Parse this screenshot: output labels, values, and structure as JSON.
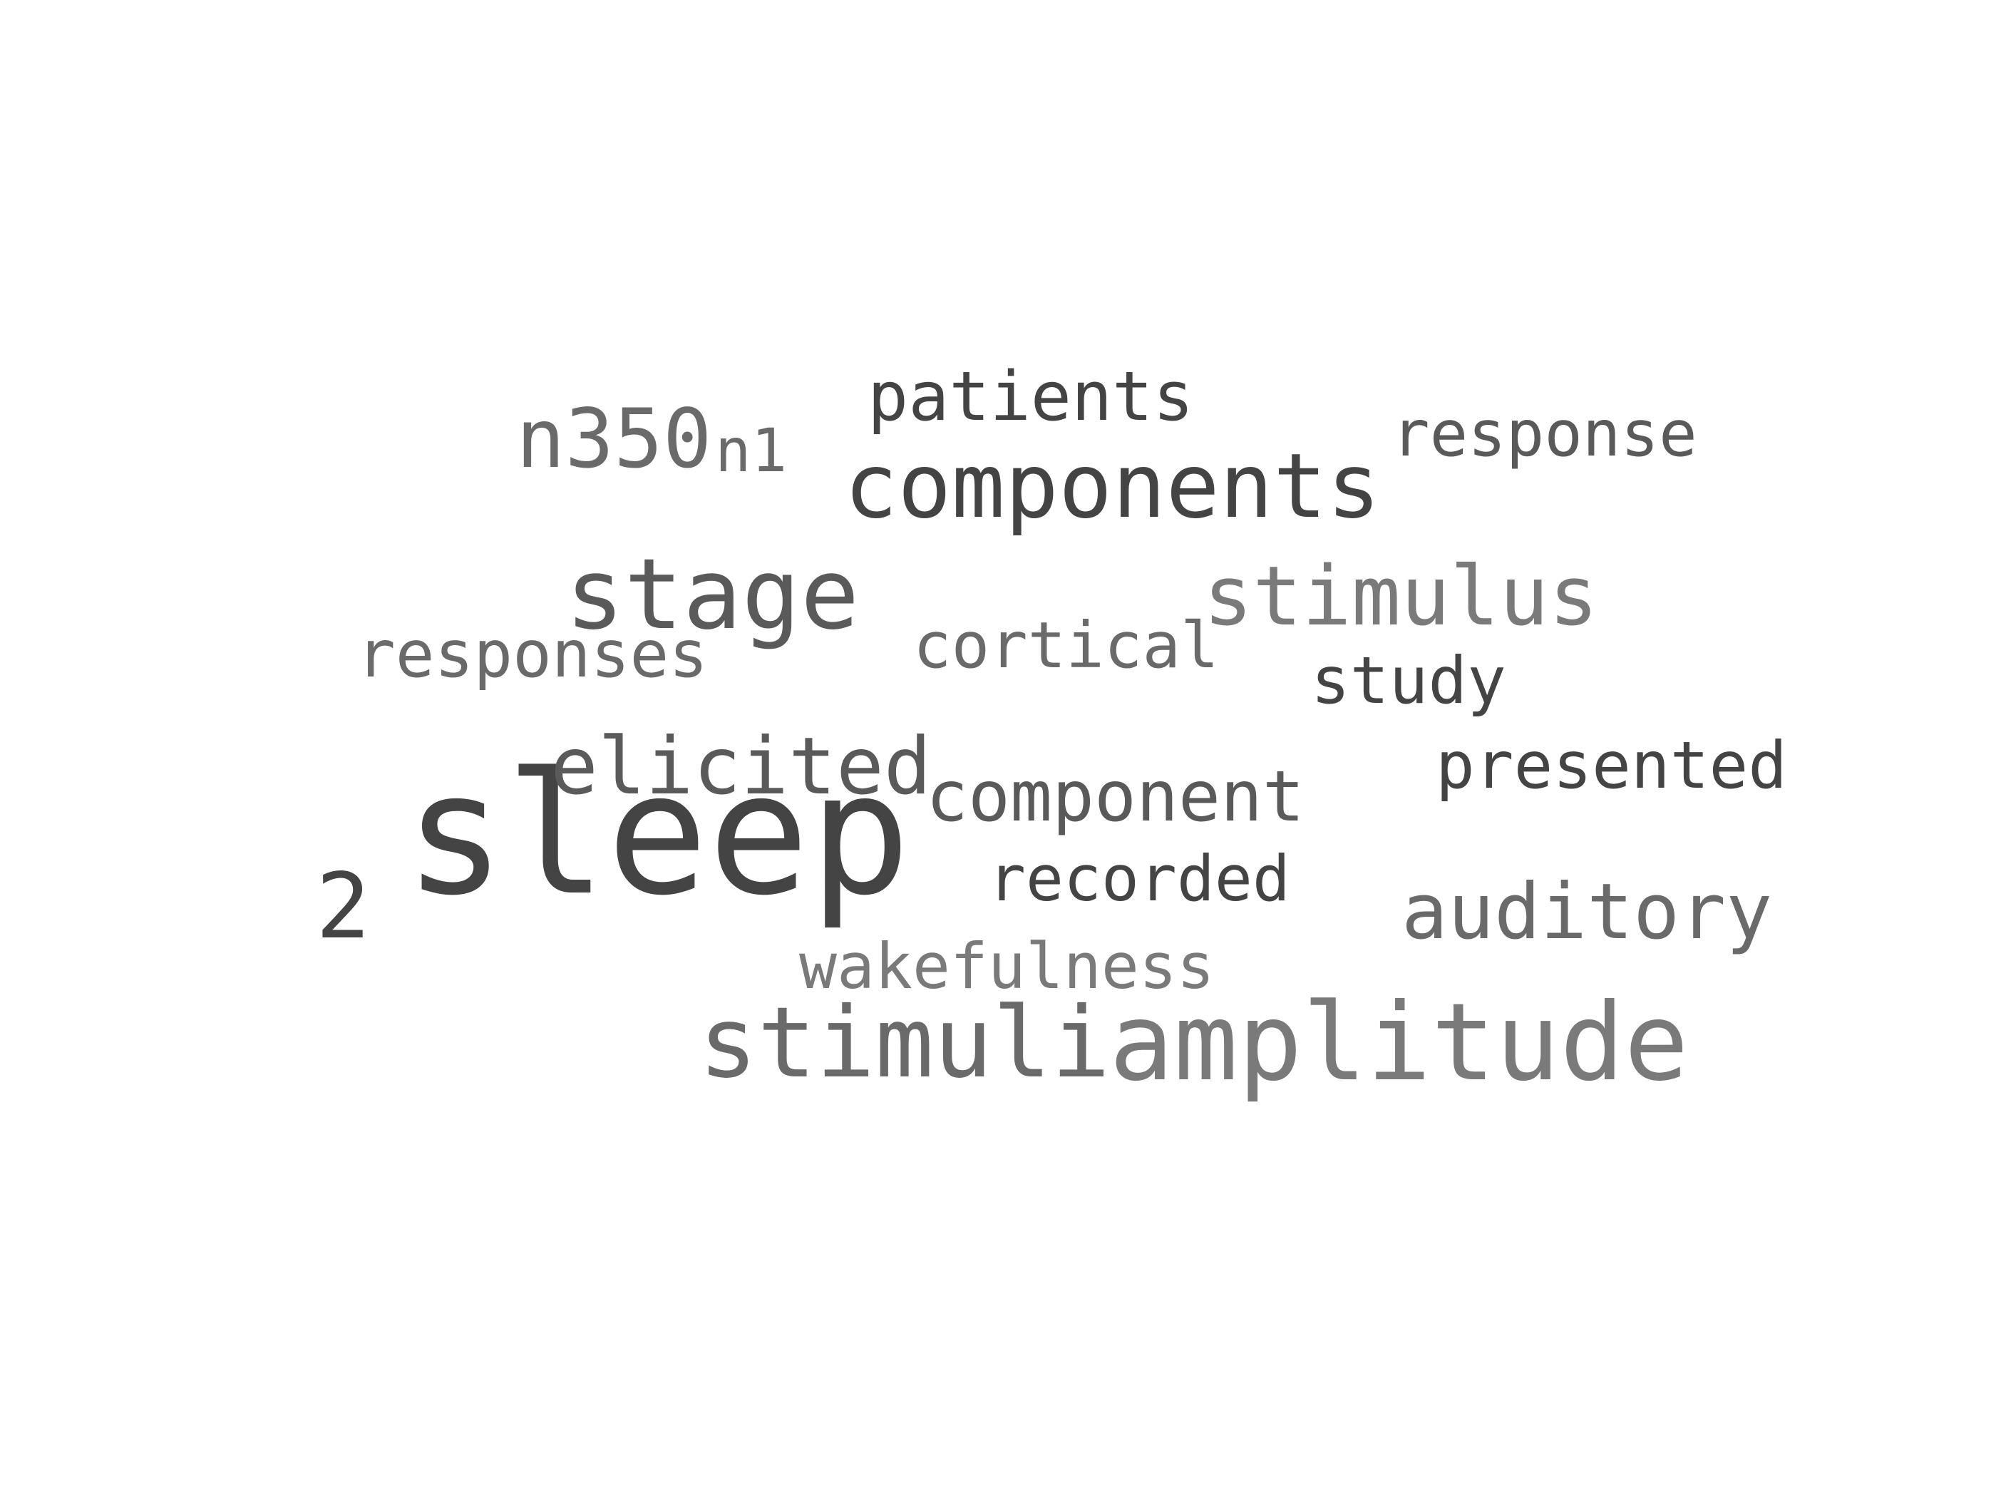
{
  "words": [
    {
      "id": "sleep",
      "text": "sleep",
      "color": "#444444"
    },
    {
      "id": "amplitude",
      "text": "amplitude",
      "color": "#7a7a7a"
    },
    {
      "id": "components",
      "text": "components",
      "color": "#444444"
    },
    {
      "id": "stage",
      "text": "stage",
      "color": "#5a5a5a"
    },
    {
      "id": "stimulus",
      "text": "stimulus",
      "color": "#7a7a7a"
    },
    {
      "id": "stimuli",
      "text": "stimuli",
      "color": "#6a6a6a"
    },
    {
      "id": "elicited",
      "text": "elicited",
      "color": "#5a5a5a"
    },
    {
      "id": "component",
      "text": "component",
      "color": "#5a5a5a"
    },
    {
      "id": "auditory",
      "text": "auditory",
      "color": "#6a6a6a"
    },
    {
      "id": "n350",
      "text": "n350",
      "color": "#6a6a6a"
    },
    {
      "id": "patients",
      "text": "patients",
      "color": "#444444"
    },
    {
      "id": "response",
      "text": "response",
      "color": "#5a5a5a"
    },
    {
      "id": "presented",
      "text": "presented",
      "color": "#444444"
    },
    {
      "id": "responses",
      "text": "responses",
      "color": "#6a6a6a"
    },
    {
      "id": "cortical",
      "text": "cortical",
      "color": "#6a6a6a"
    },
    {
      "id": "study",
      "text": "study",
      "color": "#444444"
    },
    {
      "id": "recorded",
      "text": "recorded",
      "color": "#444444"
    },
    {
      "id": "wakefulness",
      "text": "wakefulness",
      "color": "#7a7a7a"
    },
    {
      "id": "2",
      "text": "2",
      "color": "#444444"
    },
    {
      "id": "n1",
      "text": "n1",
      "color": "#6a6a6a"
    }
  ]
}
